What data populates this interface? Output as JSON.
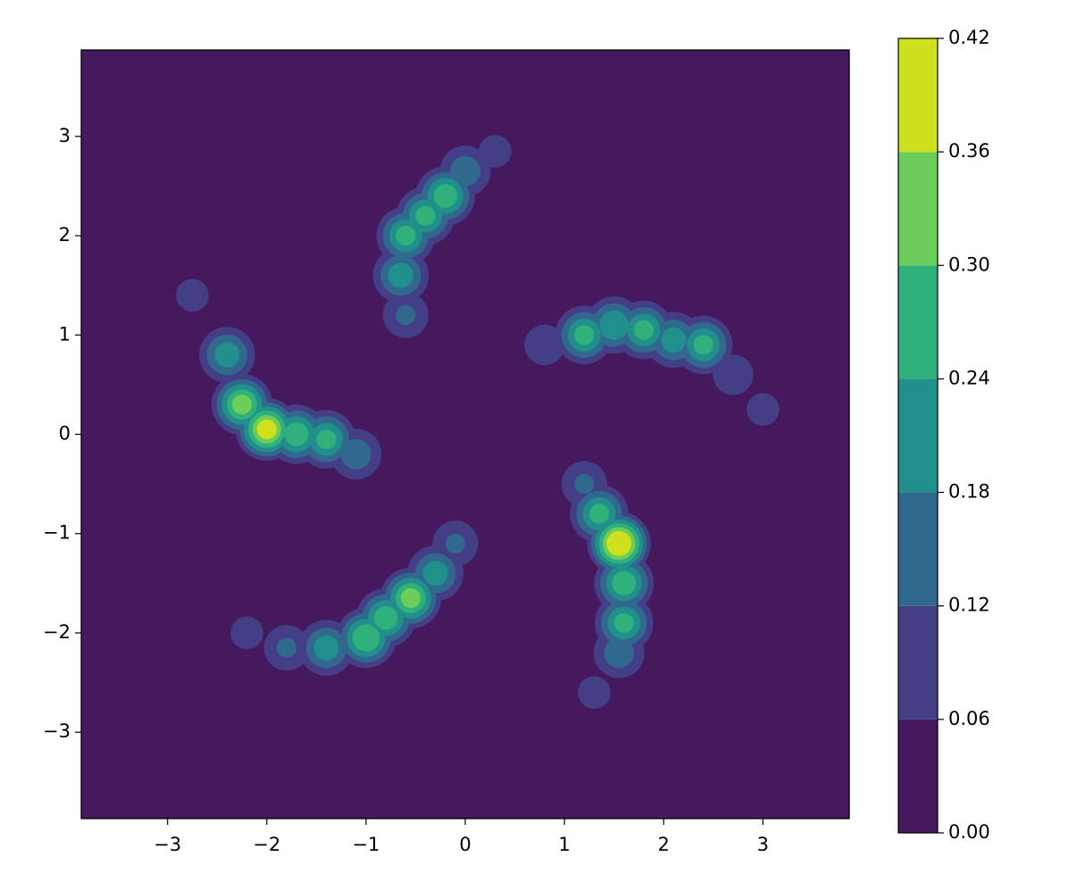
{
  "chart_data": {
    "type": "contourf",
    "xlim": [
      -3.87,
      3.87
    ],
    "ylim": [
      -3.87,
      3.87
    ],
    "xticks": [
      {
        "value": -3,
        "label": "−3"
      },
      {
        "value": -2,
        "label": "−2"
      },
      {
        "value": -1,
        "label": "−1"
      },
      0,
      1,
      2,
      3
    ],
    "yticks": [
      {
        "value": -3,
        "label": "−3"
      },
      {
        "value": -2,
        "label": "−2"
      },
      {
        "value": -1,
        "label": "−1"
      },
      0,
      1,
      2,
      3
    ],
    "levels": [
      0,
      0.06,
      0.12,
      0.18,
      0.24,
      0.3,
      0.36,
      0.42
    ],
    "colors": [
      "#46195f",
      "#433e85",
      "#31688e",
      "#21908c",
      "#30b07a",
      "#6ccd5a",
      "#cfe11c"
    ],
    "colorbar_ticks": [
      {
        "value": 0,
        "label": "0.00"
      },
      {
        "value": 0.06,
        "label": "0.06"
      },
      {
        "value": 0.12,
        "label": "0.12"
      },
      {
        "value": 0.18,
        "label": "0.18"
      },
      {
        "value": 0.24,
        "label": "0.24"
      },
      {
        "value": 0.3,
        "label": "0.30"
      },
      {
        "value": 0.36,
        "label": "0.36"
      },
      {
        "value": 0.42,
        "label": "0.42"
      }
    ],
    "x": [
      -0.6,
      -0.65,
      -0.6,
      -0.4,
      -0.2,
      0.0,
      0.3,
      0.8,
      1.2,
      1.5,
      1.8,
      2.1,
      2.4,
      2.7,
      3.0,
      1.2,
      1.35,
      1.55,
      1.6,
      1.6,
      1.55,
      1.3,
      -0.1,
      -0.3,
      -0.55,
      -0.8,
      -1.0,
      -1.4,
      -1.8,
      -2.2,
      -2.75,
      -2.4,
      -2.25,
      -2.0,
      -1.7,
      -1.4,
      -1.1
    ],
    "y": [
      1.2,
      1.6,
      2.0,
      2.2,
      2.4,
      2.65,
      2.85,
      0.9,
      1.0,
      1.1,
      1.05,
      0.95,
      0.9,
      0.6,
      0.25,
      -0.5,
      -0.8,
      -1.1,
      -1.5,
      -1.9,
      -2.2,
      -2.6,
      -1.1,
      -1.4,
      -1.65,
      -1.85,
      -2.05,
      -2.15,
      -2.15,
      -2.0,
      1.4,
      0.8,
      0.3,
      0.05,
      0.0,
      -0.05,
      -0.2
    ],
    "z": [
      0.12,
      0.2,
      0.24,
      0.24,
      0.26,
      0.15,
      0.08,
      0.1,
      0.24,
      0.22,
      0.24,
      0.2,
      0.24,
      0.1,
      0.08,
      0.12,
      0.24,
      0.4,
      0.26,
      0.24,
      0.15,
      0.08,
      0.12,
      0.2,
      0.3,
      0.26,
      0.28,
      0.2,
      0.12,
      0.08,
      0.08,
      0.2,
      0.3,
      0.36,
      0.26,
      0.24,
      0.15
    ]
  }
}
